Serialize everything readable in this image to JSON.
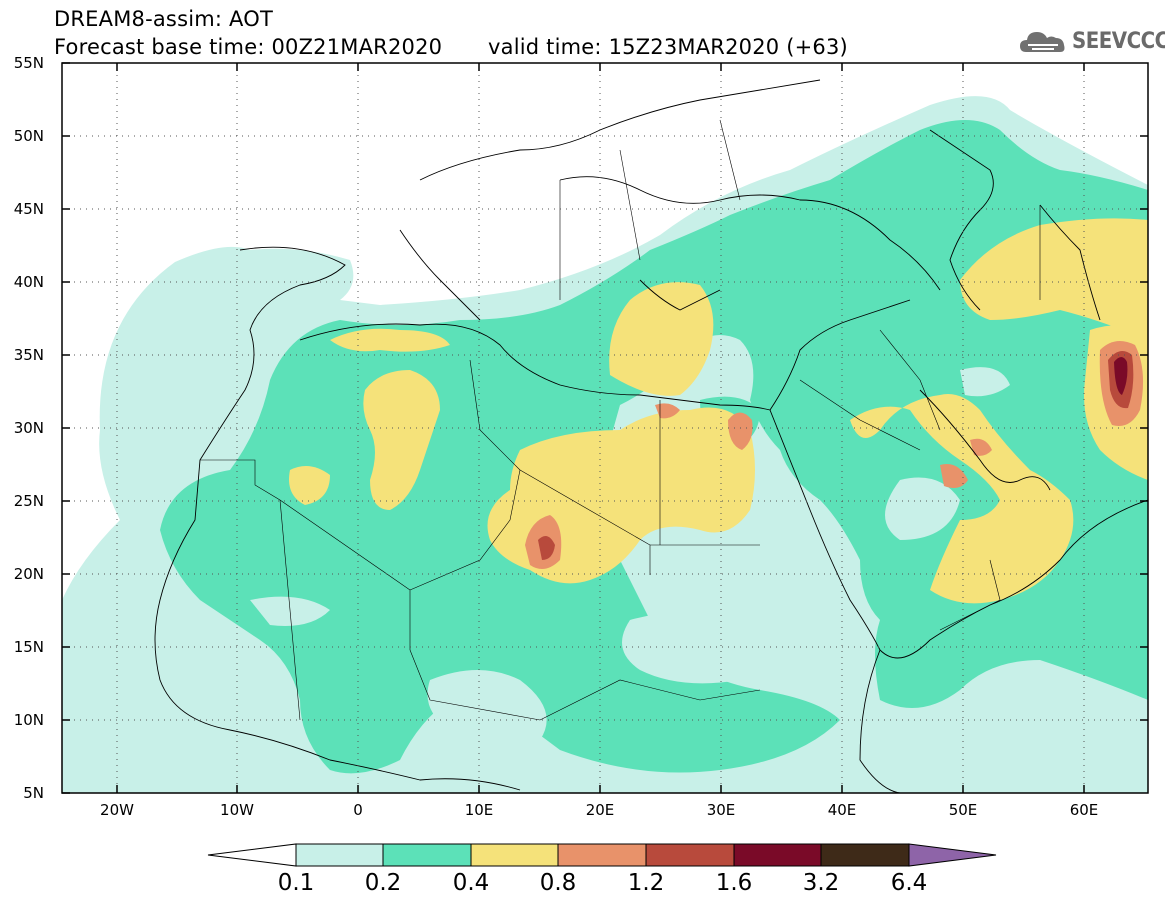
{
  "header": {
    "line1": "DREAM8-assim: AOT",
    "line2": "Forecast base time: 00Z21MAR2020",
    "line3": "valid time: 15Z23MAR2020 (+63)"
  },
  "logo": {
    "text": "SEEVCCC",
    "icon": "cloud-logo-icon"
  },
  "map": {
    "lon_range": [
      -25,
      65
    ],
    "lat_range": [
      5,
      55
    ],
    "lat_ticks": [
      "55N",
      "50N",
      "45N",
      "40N",
      "35N",
      "30N",
      "25N",
      "20N",
      "15N",
      "10N",
      "5N"
    ],
    "lon_ticks": [
      "20W",
      "10W",
      "0",
      "10E",
      "20E",
      "30E",
      "40E",
      "50E",
      "60E"
    ],
    "grid": "dotted"
  },
  "colorbar": {
    "labels": [
      "0.1",
      "0.2",
      "0.4",
      "0.8",
      "1.2",
      "1.6",
      "3.2",
      "6.4"
    ],
    "colors": [
      "#ffffff",
      "#c8f0e8",
      "#5ce1b8",
      "#f5e27a",
      "#e8926a",
      "#b84a3c",
      "#7a0a28",
      "#3e2a18",
      "#8e64a8"
    ]
  }
}
